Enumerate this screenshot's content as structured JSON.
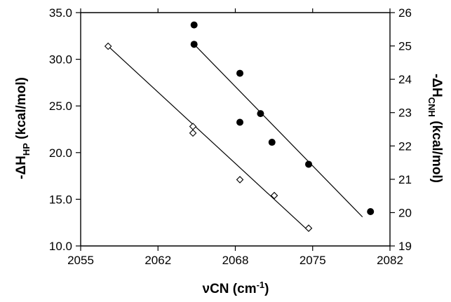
{
  "chart_data": {
    "type": "scatter",
    "title": "",
    "xlabel": {
      "main": "νCN (cm",
      "sup": "-1",
      "tail": ")"
    },
    "ylabel_left": {
      "main": "-ΔH",
      "sub": "HP",
      "tail": " (kcal/mol)"
    },
    "ylabel_right": {
      "main": "-ΔH",
      "sub": "CNH",
      "tail": " (kcal/mol)"
    },
    "xlim": [
      2055,
      2082
    ],
    "ylim_left": [
      10,
      35
    ],
    "ylim_right": [
      19,
      26
    ],
    "x_ticks": [
      "2055",
      "2062",
      "2068",
      "2075",
      "2082"
    ],
    "y_left_ticks": [
      "10.0",
      "15.0",
      "20.0",
      "25.0",
      "30.0",
      "35.0"
    ],
    "y_right_ticks": [
      "19",
      "20",
      "21",
      "22",
      "23",
      "24",
      "25",
      "26"
    ],
    "grid": false,
    "series": [
      {
        "axis": "left",
        "marker": "open-diamond",
        "points": [
          [
            2057.4,
            31.4
          ],
          [
            2064.8,
            22.8
          ],
          [
            2064.8,
            22.1
          ],
          [
            2068.9,
            17.1
          ],
          [
            2071.9,
            15.4
          ],
          [
            2074.9,
            11.9
          ]
        ],
        "fit": [
          [
            2057.4,
            31.4
          ],
          [
            2074.9,
            11.6
          ]
        ]
      },
      {
        "axis": "right",
        "marker": "filled-circle",
        "points": [
          [
            2064.9,
            25.63
          ],
          [
            2064.9,
            25.05
          ],
          [
            2068.9,
            24.18
          ],
          [
            2068.9,
            22.71
          ],
          [
            2070.7,
            22.97
          ],
          [
            2071.7,
            22.11
          ],
          [
            2074.9,
            21.45
          ],
          [
            2080.3,
            20.03
          ]
        ],
        "fit": [
          [
            2064.9,
            25.05
          ],
          [
            2079.6,
            19.87
          ]
        ]
      }
    ]
  }
}
